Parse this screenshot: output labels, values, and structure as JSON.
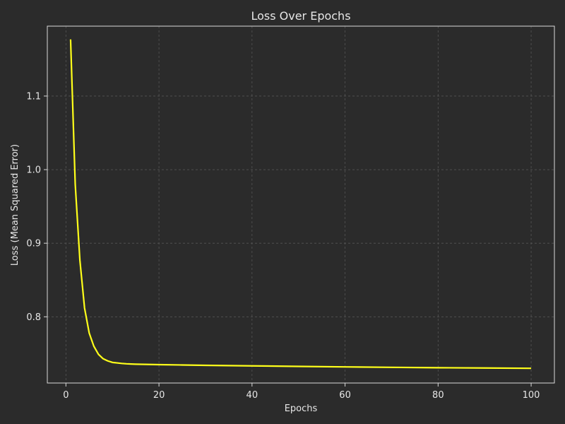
{
  "chart_data": {
    "type": "line",
    "title": "Loss Over Epochs",
    "xlabel": "Epochs",
    "ylabel": "Loss (Mean Squared Error)",
    "xlim": [
      -4,
      105
    ],
    "ylim": [
      0.71,
      1.195
    ],
    "xticks": [
      {
        "value": 0,
        "label": "0"
      },
      {
        "value": 20,
        "label": "20"
      },
      {
        "value": 40,
        "label": "40"
      },
      {
        "value": 60,
        "label": "60"
      },
      {
        "value": 80,
        "label": "80"
      },
      {
        "value": 100,
        "label": "100"
      }
    ],
    "yticks": [
      {
        "value": 0.8,
        "label": "0.8"
      },
      {
        "value": 0.9,
        "label": "0.9"
      },
      {
        "value": 1.0,
        "label": "1.0"
      },
      {
        "value": 1.1,
        "label": "1.1"
      }
    ],
    "grid": true,
    "background": "#2b2b2b",
    "line_color": "#ffff1a",
    "grid_color": "#555555",
    "series": [
      {
        "x": [
          1,
          2,
          3,
          4,
          5,
          6,
          7,
          8,
          9,
          10,
          11,
          12,
          13,
          14,
          15,
          20,
          25,
          30,
          40,
          50,
          60,
          70,
          80,
          90,
          100
        ],
        "y": [
          1.177,
          0.98,
          0.877,
          0.812,
          0.778,
          0.76,
          0.749,
          0.743,
          0.74,
          0.738,
          0.7373,
          0.7366,
          0.7361,
          0.7358,
          0.7356,
          0.735,
          0.7345,
          0.734,
          0.7333,
          0.7326,
          0.7319,
          0.7313,
          0.7308,
          0.7304,
          0.73
        ]
      }
    ]
  }
}
